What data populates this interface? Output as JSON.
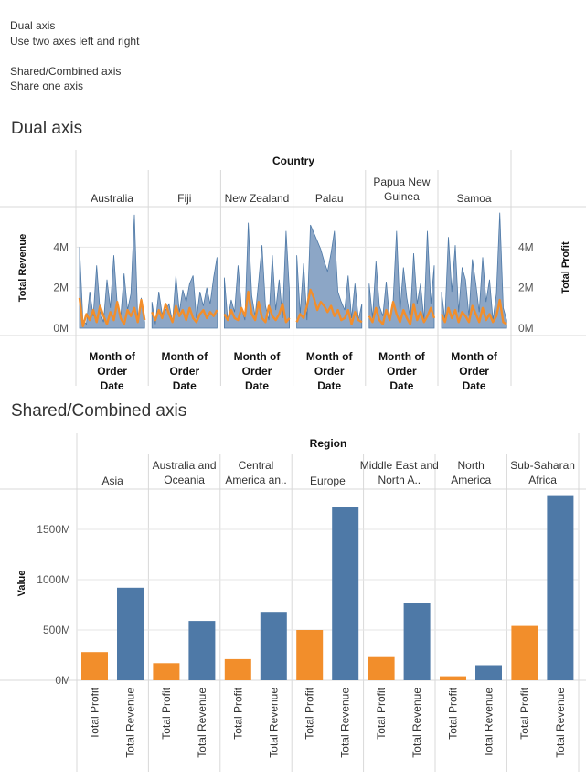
{
  "intro": {
    "line1": "Dual axis",
    "line2": "Use two axes left and right",
    "line3": "Shared/Combined axis",
    "line4": "Share one axis"
  },
  "colors": {
    "revenue": "#4e79a7",
    "revenue_area": "#8ca6c6",
    "profit": "#f28e2b",
    "grid": "#e6e6e6",
    "divider": "#d9d9d9"
  },
  "dual": {
    "section_title": "Dual axis",
    "header": "Country",
    "left_axis_title": "Total Revenue",
    "right_axis_title": "Total Profit",
    "left_ticks": [
      "0M",
      "2M",
      "4M"
    ],
    "right_ticks": [
      "0M",
      "2M",
      "4M"
    ],
    "columns": [
      "Australia",
      "Fiji",
      "New Zealand",
      "Palau",
      "Papua New Guinea",
      "Samoa"
    ],
    "x_label": "Month of Order Date"
  },
  "combined": {
    "section_title": "Shared/Combined axis",
    "header": "Region",
    "axis_title": "Value",
    "ticks": [
      "0M",
      "500M",
      "1000M",
      "1500M"
    ],
    "columns": [
      "Asia",
      "Australia and Oceania",
      "Central America an..",
      "Europe",
      "Middle East and North A..",
      "North America",
      "Sub-Saharan Africa"
    ],
    "measures": [
      "Total Profit",
      "Total Revenue"
    ]
  },
  "chart_data": [
    {
      "type": "area",
      "title": "Dual axis",
      "facet": "Country",
      "xlabel": "Month of Order Date",
      "ylabel_left": "Total Revenue",
      "ylabel_right": "Total Profit",
      "ylim": [
        0,
        6000000
      ],
      "series": [
        {
          "name": "Total Revenue",
          "country": "Australia",
          "values": [
            4000000,
            400000,
            200000,
            1800000,
            600000,
            3100000,
            800000,
            300000,
            2400000,
            1000000,
            3600000,
            1200000,
            500000,
            2700000,
            900000,
            1700000,
            5600000,
            400000,
            1500000,
            300000
          ]
        },
        {
          "name": "Total Revenue",
          "country": "Fiji",
          "values": [
            1300000,
            200000,
            1800000,
            700000,
            900000,
            1200000,
            300000,
            2600000,
            800000,
            1900000,
            1300000,
            2200000,
            2600000,
            500000,
            1800000,
            1100000,
            2000000,
            1200000,
            2500000,
            3500000
          ]
        },
        {
          "name": "Total Revenue",
          "country": "New Zealand",
          "values": [
            2500000,
            400000,
            1400000,
            800000,
            3100000,
            1000000,
            400000,
            5200000,
            1600000,
            600000,
            2300000,
            4100000,
            1100000,
            400000,
            3600000,
            900000,
            2400000,
            500000,
            4800000,
            1800000
          ]
        },
        {
          "name": "Total Revenue",
          "country": "Palau",
          "values": [
            3600000,
            700000,
            3200000,
            400000,
            5100000,
            4700000,
            4300000,
            3900000,
            3300000,
            2800000,
            3700000,
            4800000,
            1800000,
            1300000,
            900000,
            2600000,
            500000,
            2200000,
            400000,
            1200000
          ]
        },
        {
          "name": "Total Revenue",
          "country": "Papua New Guinea",
          "values": [
            2200000,
            500000,
            3300000,
            1100000,
            600000,
            2300000,
            400000,
            1300000,
            4800000,
            800000,
            3000000,
            1500000,
            500000,
            3700000,
            1200000,
            2200000,
            400000,
            4800000,
            1200000,
            3100000
          ]
        },
        {
          "name": "Total Revenue",
          "country": "Samoa",
          "values": [
            1800000,
            400000,
            4500000,
            1800000,
            4100000,
            800000,
            3000000,
            2400000,
            600000,
            3400000,
            2200000,
            800000,
            3500000,
            1300000,
            2400000,
            400000,
            1700000,
            5700000,
            1000000,
            400000
          ]
        },
        {
          "name": "Total Profit",
          "country": "Australia",
          "values": [
            1500000,
            100000,
            700000,
            400000,
            900000,
            300000,
            1100000,
            600000,
            200000,
            800000,
            400000,
            1300000,
            500000,
            200000,
            900000,
            600000,
            1000000,
            300000,
            1400000,
            400000
          ]
        },
        {
          "name": "Total Profit",
          "country": "Fiji",
          "values": [
            800000,
            400000,
            900000,
            500000,
            1200000,
            700000,
            300000,
            1100000,
            600000,
            900000,
            400000,
            1000000,
            500000,
            300000,
            700000,
            900000,
            500000,
            800000,
            600000,
            900000
          ]
        },
        {
          "name": "Total Profit",
          "country": "New Zealand",
          "values": [
            700000,
            400000,
            900000,
            500000,
            400000,
            1000000,
            600000,
            1800000,
            700000,
            400000,
            1300000,
            500000,
            300000,
            1100000,
            600000,
            400000,
            700000,
            1200000,
            300000,
            500000
          ]
        },
        {
          "name": "Total Profit",
          "country": "Palau",
          "values": [
            300000,
            700000,
            500000,
            1100000,
            1900000,
            1500000,
            900000,
            1300000,
            1100000,
            800000,
            1100000,
            600000,
            900000,
            400000,
            500000,
            900000,
            200000,
            800000,
            400000,
            300000
          ]
        },
        {
          "name": "Total Profit",
          "country": "Papua New Guinea",
          "values": [
            600000,
            300000,
            1000000,
            400000,
            200000,
            900000,
            400000,
            1300000,
            700000,
            300000,
            900000,
            500000,
            200000,
            1200000,
            400000,
            800000,
            300000,
            600000,
            1000000,
            500000
          ]
        },
        {
          "name": "Total Profit",
          "country": "Samoa",
          "values": [
            700000,
            300000,
            1000000,
            500000,
            900000,
            300000,
            800000,
            600000,
            300000,
            1100000,
            700000,
            300000,
            1000000,
            400000,
            700000,
            300000,
            600000,
            1400000,
            300000,
            200000
          ]
        }
      ]
    },
    {
      "type": "bar",
      "title": "Shared/Combined axis",
      "facet": "Region",
      "ylabel": "Value",
      "ylim": [
        0,
        1900000000
      ],
      "categories": [
        "Asia",
        "Australia and Oceania",
        "Central America an..",
        "Europe",
        "Middle East and North A..",
        "North America",
        "Sub-Saharan Africa"
      ],
      "series": [
        {
          "name": "Total Profit",
          "values": [
            280000000,
            170000000,
            210000000,
            500000000,
            230000000,
            40000000,
            540000000
          ]
        },
        {
          "name": "Total Revenue",
          "values": [
            920000000,
            590000000,
            680000000,
            1720000000,
            770000000,
            150000000,
            1840000000
          ]
        }
      ]
    }
  ]
}
